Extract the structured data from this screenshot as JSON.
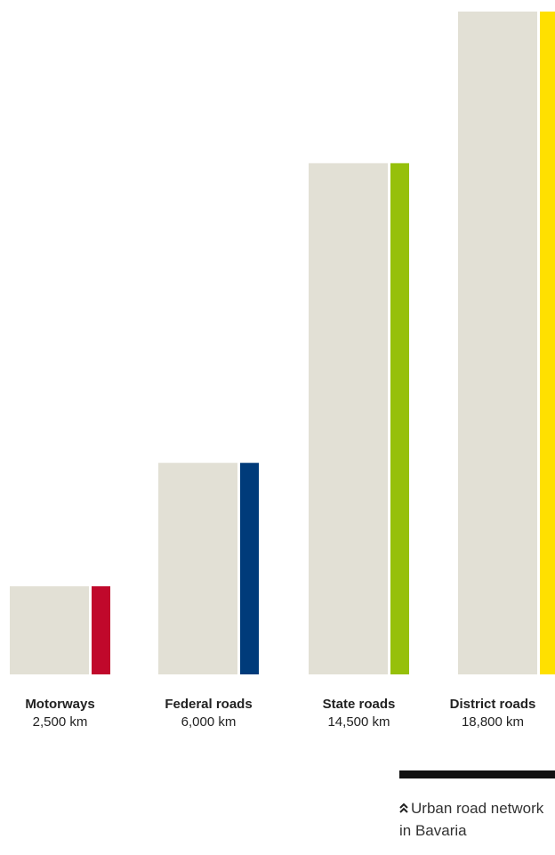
{
  "chart_data": {
    "type": "bar",
    "categories": [
      "Motorways",
      "Federal roads",
      "State roads",
      "District roads"
    ],
    "value_labels": [
      "2,500 km",
      "6,000 km",
      "14,500 km",
      "18,800 km"
    ],
    "values": [
      2500,
      6000,
      14500,
      18800
    ],
    "unit": "km",
    "ylim": [
      0,
      19000
    ],
    "accent_colors": [
      "#c0082b",
      "#003b7a",
      "#96c00a",
      "#ffe000"
    ],
    "bar_color": "#e2e0d5",
    "grid": false,
    "title": "",
    "xlabel": "",
    "ylabel": ""
  },
  "footer": {
    "note_icon": "double-chevron-up-icon",
    "note_text": "Urban road network in Bavaria"
  }
}
